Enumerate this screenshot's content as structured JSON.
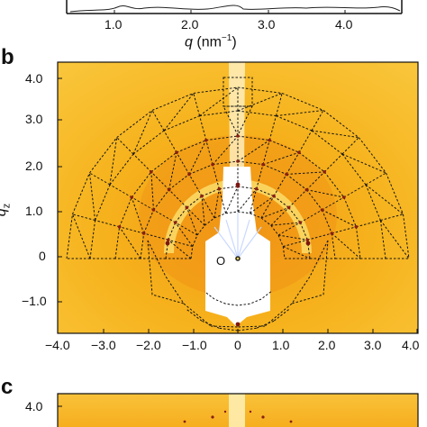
{
  "panel_a": {
    "x_ticks": [
      "1.0",
      "2.0",
      "3.0",
      "4.0"
    ],
    "x_label_symbol": "q",
    "x_label_unit": "(nm",
    "x_label_exp": "−1",
    "x_label_close": ")"
  },
  "panel_b": {
    "letter": "b",
    "y_label_symbol": "q",
    "y_label_sub": "z",
    "y_ticks": [
      "4.0",
      "3.0",
      "2.0",
      "1.0",
      "0",
      "−1.0"
    ],
    "x_ticks": [
      "−4.0",
      "−3.0",
      "−2.0",
      "−1.0",
      "0",
      "1.0",
      "2.0",
      "3.0",
      "4.0"
    ],
    "origin_label": "O",
    "colors": {
      "background": "#f6b21c",
      "overlay_line": "#151515",
      "mask": "#ffffff",
      "ring": "#fbdd6a"
    }
  },
  "panel_c": {
    "letter": "c",
    "y_ticks": [
      "4.0"
    ]
  }
}
